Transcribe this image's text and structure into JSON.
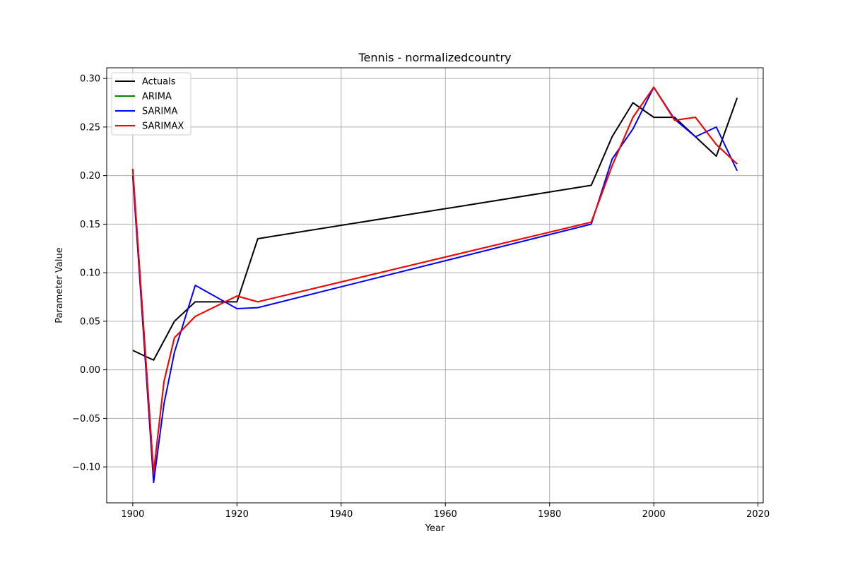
{
  "chart_data": {
    "type": "line",
    "title": "Tennis - normalizedcountry",
    "xlabel": "Year",
    "ylabel": "Parameter Value",
    "xlim": [
      1895,
      2021
    ],
    "ylim": [
      -0.137,
      0.311
    ],
    "x_ticks": [
      1900,
      1920,
      1940,
      1960,
      1980,
      2000,
      2020
    ],
    "x_tick_labels": [
      "1900",
      "1920",
      "1940",
      "1960",
      "1980",
      "2000",
      "2020"
    ],
    "y_ticks": [
      -0.1,
      -0.05,
      0.0,
      0.05,
      0.1,
      0.15,
      0.2,
      0.25,
      0.3
    ],
    "y_tick_labels": [
      "−0.10",
      "−0.05",
      "0.00",
      "0.05",
      "0.10",
      "0.15",
      "0.20",
      "0.25",
      "0.30"
    ],
    "grid": true,
    "legend_position": "top-left",
    "series": [
      {
        "name": "Actuals",
        "color": "#000000",
        "x": [
          1900,
          1904,
          1908,
          1912,
          1920,
          1924,
          1988,
          1992,
          1996,
          2000,
          2004,
          2008,
          2012,
          2016
        ],
        "values": [
          0.02,
          0.01,
          0.05,
          0.07,
          0.07,
          0.135,
          0.19,
          0.24,
          0.275,
          0.26,
          0.26,
          0.24,
          0.22,
          0.28
        ]
      },
      {
        "name": "ARIMA",
        "color": "#008000",
        "x": [
          1900,
          1904,
          1906,
          1908,
          1912,
          1920,
          1924,
          1988,
          1992,
          1996,
          2000,
          2004,
          2008,
          2012,
          2016
        ],
        "values": [
          0.207,
          -0.106,
          -0.012,
          0.033,
          0.055,
          0.076,
          0.07,
          0.152,
          0.21,
          0.26,
          0.291,
          0.257,
          0.26,
          0.232,
          0.212
        ]
      },
      {
        "name": "SARIMA",
        "color": "#0000ff",
        "x": [
          1900,
          1904,
          1906,
          1908,
          1912,
          1920,
          1924,
          1988,
          1992,
          1996,
          2000,
          2004,
          2008,
          2012,
          2016
        ],
        "values": [
          0.2,
          -0.116,
          -0.035,
          0.018,
          0.087,
          0.063,
          0.064,
          0.15,
          0.217,
          0.248,
          0.291,
          0.258,
          0.24,
          0.25,
          0.205
        ]
      },
      {
        "name": "SARIMAX",
        "color": "#ff0000",
        "x": [
          1900,
          1904,
          1906,
          1908,
          1912,
          1920,
          1924,
          1988,
          1992,
          1996,
          2000,
          2004,
          2008,
          2012,
          2016
        ],
        "values": [
          0.207,
          -0.106,
          -0.012,
          0.033,
          0.055,
          0.076,
          0.07,
          0.152,
          0.21,
          0.26,
          0.291,
          0.257,
          0.26,
          0.232,
          0.212
        ]
      }
    ]
  }
}
